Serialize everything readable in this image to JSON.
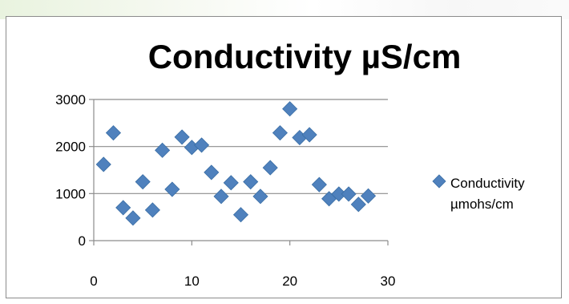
{
  "chart_data": {
    "type": "scatter",
    "title": "Conductivity µS/cm",
    "xlabel": "",
    "ylabel": "",
    "xlim": [
      0,
      30
    ],
    "ylim": [
      0,
      3000
    ],
    "x_ticks": [
      0,
      10,
      20,
      30
    ],
    "y_ticks": [
      0,
      1000,
      2000,
      3000
    ],
    "grid": "horizontal major gridlines",
    "legend_position": "right",
    "marker": "diamond",
    "marker_color": "#4f81bd",
    "series": [
      {
        "name": "Conductivity µmohs/cm",
        "legend_lines": [
          "Conductivity",
          "µmohs/cm"
        ],
        "x": [
          1,
          2,
          3,
          4,
          5,
          6,
          7,
          8,
          9,
          10,
          11,
          12,
          13,
          14,
          15,
          16,
          17,
          18,
          19,
          20,
          21,
          22,
          23,
          24,
          25,
          26,
          27,
          28
        ],
        "y": [
          1620,
          2290,
          700,
          480,
          1250,
          650,
          1920,
          1090,
          2200,
          1980,
          2030,
          1450,
          940,
          1230,
          550,
          1250,
          940,
          1550,
          2290,
          2800,
          2190,
          2250,
          1190,
          890,
          990,
          990,
          770,
          950
        ]
      }
    ]
  }
}
